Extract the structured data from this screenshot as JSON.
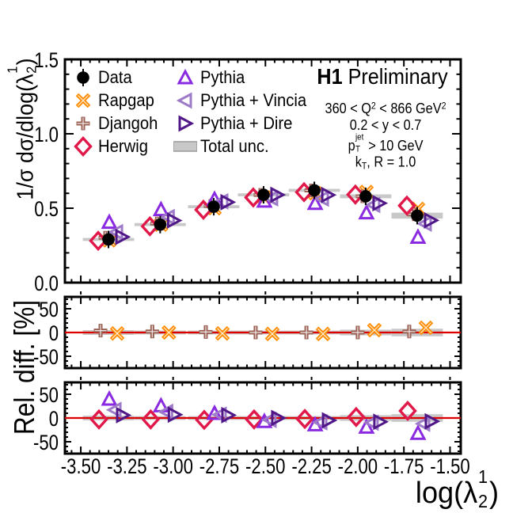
{
  "title": {
    "bold": "H1",
    "rest": " Preliminary"
  },
  "conditions": [
    "360 < Q^{2} < 866 GeV^{2}",
    "0.2 < y < 0.7",
    "p_{T}^{jet} > 10 GeV",
    "k_{T}, R = 1.0"
  ],
  "axes": {
    "x_label": "log(λ^{1}_{2})",
    "y_label_main": "1/σ dσ/dlog(λ^{1}_{2})",
    "y_label_ratio": "Rel. diff. [%]",
    "x_tick_labels": [
      "-3.50",
      "-3.25",
      "-3.00",
      "-2.75",
      "-2.50",
      "-2.25",
      "-2.00",
      "-1.75",
      "-1.50"
    ],
    "x_tick_values": [
      -3.5,
      -3.25,
      -3.0,
      -2.75,
      -2.5,
      -2.25,
      -2.0,
      -1.75,
      -1.5
    ],
    "x_range": [
      -3.586,
      -1.442
    ],
    "x_minor_step": 0.05,
    "main_y": {
      "range": [
        0,
        1.5
      ],
      "ticks": [
        {
          "v": 0.0,
          "label": "0.0"
        },
        {
          "v": 0.5,
          "label": "0.5"
        },
        {
          "v": 1.0,
          "label": "1.0"
        },
        {
          "v": 1.5,
          "label": "1.5"
        }
      ],
      "minor_step": 0.1
    },
    "ratio_y": {
      "range": [
        -75,
        75
      ],
      "ticks": [
        {
          "v": -50,
          "label": "-50"
        },
        {
          "v": 0,
          "label": "0"
        },
        {
          "v": 50,
          "label": "50"
        }
      ],
      "minor_step": 10
    }
  },
  "chart_data": {
    "type": "scatter",
    "x_bins": {
      "centers": [
        -3.35,
        -3.07,
        -2.78,
        -2.51,
        -2.235,
        -1.957,
        -1.678
      ],
      "half_width": 0.139
    },
    "data_series": {
      "name": "Data",
      "marker": "circle",
      "color": "#000000",
      "values": [
        0.29,
        0.39,
        0.51,
        0.59,
        0.62,
        0.58,
        0.45
      ]
    },
    "total_unc": {
      "name": "Total unc.",
      "color": "#c8c8c8",
      "main_half": [
        0.01,
        0.01,
        0.01,
        0.01,
        0.01,
        0.013,
        0.02
      ],
      "ratio_half_pct": [
        5,
        4,
        4,
        4,
        4,
        6,
        8
      ]
    },
    "mc_series": [
      {
        "name": "Rapgap",
        "marker": "xcross",
        "color": "#ff8c00",
        "ratio_panel": "middle",
        "rel_diff_pct": [
          -2,
          0,
          -2,
          -3,
          -3,
          5,
          10
        ]
      },
      {
        "name": "Djangoh",
        "marker": "plus",
        "color": "#9a6054",
        "ratio_panel": "middle",
        "rel_diff_pct": [
          4,
          2,
          1,
          0,
          0,
          0,
          2
        ]
      },
      {
        "name": "Herwig",
        "marker": "diamond",
        "color": "#e0194a",
        "ratio_panel": "bottom",
        "rel_diff_pct": [
          -3,
          -3,
          -4,
          -3,
          -2,
          2,
          15
        ]
      },
      {
        "name": "Pythia",
        "marker": "triangle-up",
        "color": "#8a2be2",
        "ratio_panel": "bottom",
        "rel_diff_pct": [
          40,
          26,
          10,
          -7,
          -14,
          -19,
          -32
        ]
      },
      {
        "name": "Pythia + Vincia",
        "marker": "triangle-left",
        "color": "#9e7bc9",
        "ratio_panel": "bottom",
        "rel_diff_pct": [
          17,
          13,
          7,
          -4,
          -9,
          -10,
          -12
        ]
      },
      {
        "name": "Pythia + Dire",
        "marker": "triangle-right",
        "color": "#4f1787",
        "ratio_panel": "bottom",
        "rel_diff_pct": [
          6,
          7,
          6,
          0,
          -5,
          -8,
          -7
        ]
      }
    ],
    "zero_line_color": "#dd0000",
    "legend": {
      "col1": [
        "Data",
        "Rapgap",
        "Djangoh",
        "Herwig"
      ],
      "col2": [
        "Pythia",
        "Pythia + Vincia",
        "Pythia + Dire",
        "Total unc."
      ]
    },
    "marker_offsets_px": {
      "main": {
        "Data": 0,
        "Rapgap": 1,
        "Djangoh": -4,
        "Herwig": -13,
        "Pythia": 1,
        "Pythia + Vincia": 10,
        "Pythia + Dire": 17
      },
      "ratio": {
        "Rapgap": 11,
        "Djangoh": -10,
        "Herwig": -12,
        "Pythia": 1,
        "Pythia + Vincia": 8,
        "Pythia + Dire": 18
      }
    }
  }
}
